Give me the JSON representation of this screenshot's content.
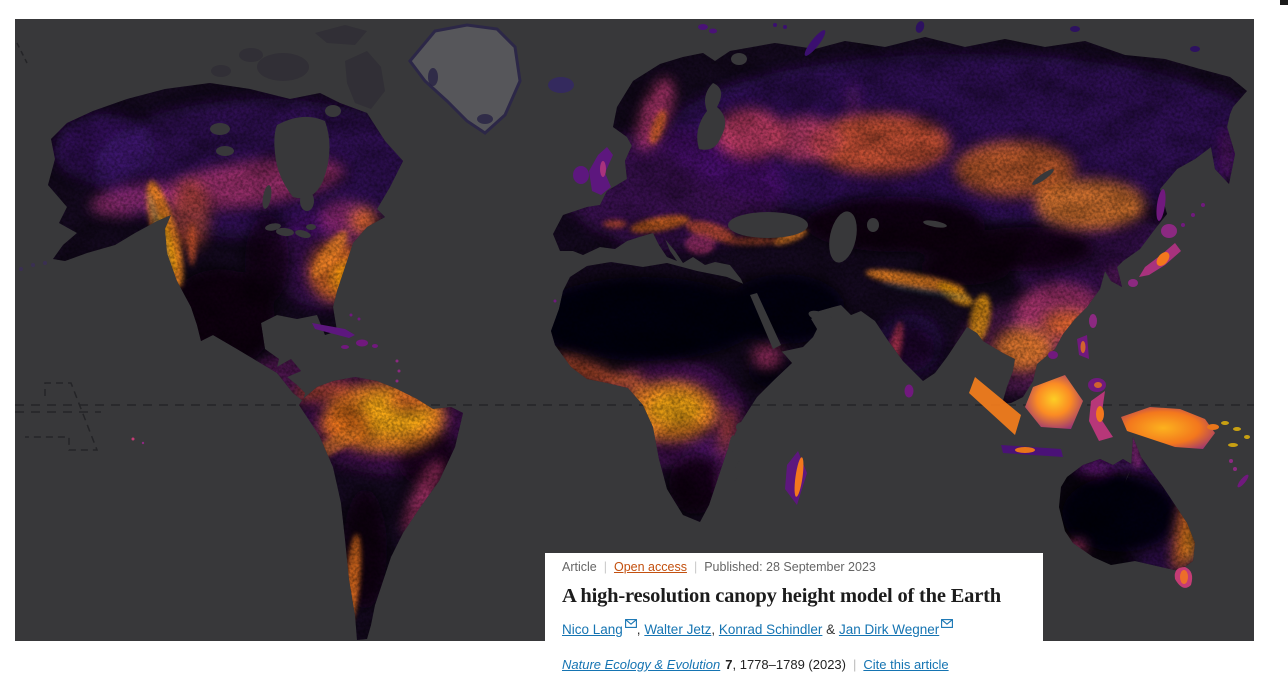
{
  "map": {
    "name": "Global high-resolution canopy height model map",
    "ocean_color": "#38383a",
    "no_data_color": "#56565a",
    "land_base_color": "#150a20",
    "colormap": [
      "#000004",
      "#1d0b31",
      "#3b0f70",
      "#641a80",
      "#8c2981",
      "#b73779",
      "#de4968",
      "#f3771d",
      "#fb8b24",
      "#fca50e",
      "#fcce25"
    ],
    "equator_dashed_line": true
  },
  "card": {
    "meta": {
      "type": "Article",
      "access": "Open access",
      "published": "Published: 28 September 2023",
      "separator": "|"
    },
    "title": "A high-resolution canopy height model of the Earth",
    "authors": [
      {
        "name": "Nico Lang",
        "mail": true,
        "sep": ", "
      },
      {
        "name": "Walter Jetz",
        "mail": false,
        "sep": ", "
      },
      {
        "name": "Konrad Schindler",
        "mail": false,
        "sep": " & "
      },
      {
        "name": "Jan Dirk Wegner",
        "mail": true,
        "sep": ""
      }
    ],
    "citation": {
      "journal": "Nature Ecology & Evolution",
      "volume": "7",
      "pages": ", 1778–1789 (2023)",
      "separator": "|",
      "cite_link": "Cite this article"
    }
  },
  "colors": {
    "link_blue": "#1574b2",
    "open_access_orange": "#c3500f",
    "meta_gray": "#656565",
    "text_dark": "#1c1c1c"
  }
}
